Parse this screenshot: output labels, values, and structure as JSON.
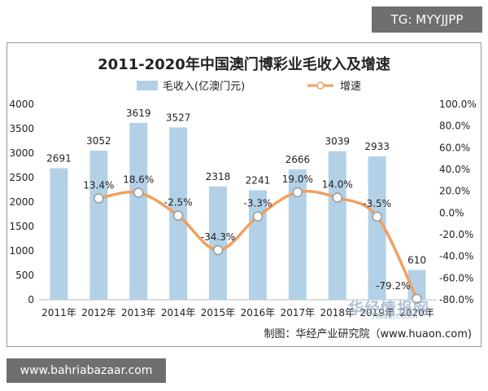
{
  "tg_badge": "TG: MYYJJPP",
  "site_badge": "www.bahriabazaar.com",
  "watermark": {
    "brand": "华经情报网",
    "url": "huaon.com"
  },
  "chart_data": {
    "type": "bar",
    "title": "2011-2020年中国澳门博彩业毛收入及增速",
    "categories": [
      "2011年",
      "2012年",
      "2013年",
      "2014年",
      "2015年",
      "2016年",
      "2017年",
      "2018年",
      "2019年",
      "2020年"
    ],
    "series": [
      {
        "name": "毛收入(亿澳门元)",
        "type": "bar",
        "axis": "left",
        "color": "#b3d1e6",
        "values": [
          2691,
          3052,
          3619,
          3527,
          2318,
          2241,
          2666,
          3039,
          2933,
          610
        ],
        "labels": [
          "2691",
          "3052",
          "3619",
          "3527",
          "2318",
          "2241",
          "2666",
          "3039",
          "2933",
          "610"
        ]
      },
      {
        "name": "增速",
        "type": "line",
        "axis": "right",
        "color": "#f0a060",
        "values": [
          null,
          13.4,
          18.6,
          -2.5,
          -34.3,
          -3.3,
          19.0,
          14.0,
          -3.5,
          -79.2
        ],
        "labels": [
          "",
          "13.4%",
          "18.6%",
          "-2.5%",
          "-34.3%",
          "-3.3%",
          "19.0%",
          "14.0%",
          "-3.5%",
          "-79.2%"
        ]
      }
    ],
    "y_left": {
      "lim": [
        0,
        4000
      ],
      "ticks": [
        0,
        500,
        1000,
        1500,
        2000,
        2500,
        3000,
        3500,
        4000
      ],
      "tick_labels": [
        "0",
        "500",
        "1000",
        "1500",
        "2000",
        "2500",
        "3000",
        "3500",
        "4000"
      ]
    },
    "y_right": {
      "lim": [
        -80,
        100
      ],
      "ticks": [
        -80,
        -60,
        -40,
        -20,
        0,
        20,
        40,
        60,
        80,
        100
      ],
      "tick_labels": [
        "-80.0%",
        "-60.0%",
        "-40.0%",
        "-20.0%",
        "0.0%",
        "20.0%",
        "40.0%",
        "60.0%",
        "80.0%",
        "100.0%"
      ]
    },
    "legend": {
      "placement": "top-center",
      "items": [
        "毛收入(亿澳门元)",
        "增速"
      ]
    },
    "grid": false,
    "source": "制图：华经产业研究院（www.huaon.com)"
  }
}
